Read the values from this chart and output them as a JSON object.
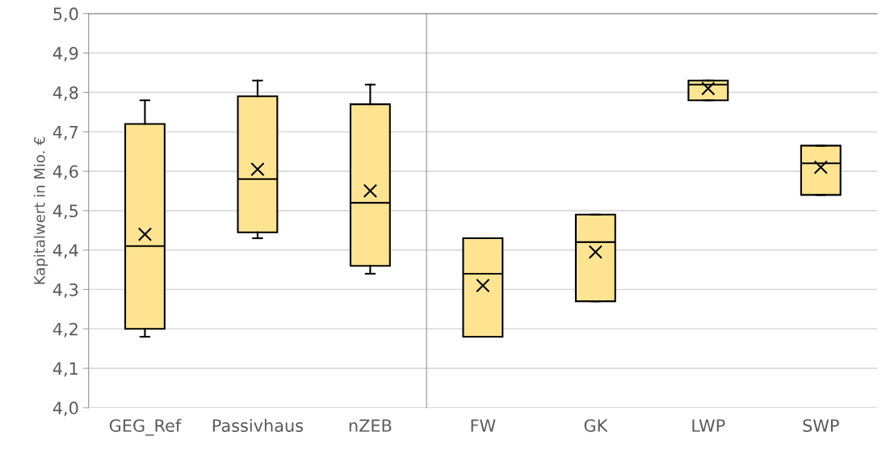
{
  "chart_data": [
    {
      "type": "box",
      "ylabel": "Kapitalwert in Mio. €",
      "categories": [
        "GEG_Ref",
        "Passivhaus",
        "nZEB"
      ],
      "color": "#fee491",
      "boxes": [
        {
          "low": 4.18,
          "q1": 4.2,
          "median": 4.41,
          "q3": 4.72,
          "high": 4.78,
          "mean": 4.44
        },
        {
          "low": 4.43,
          "q1": 4.445,
          "median": 4.58,
          "q3": 4.79,
          "high": 4.83,
          "mean": 4.605
        },
        {
          "low": 4.34,
          "q1": 4.36,
          "median": 4.52,
          "q3": 4.77,
          "high": 4.82,
          "mean": 4.55
        }
      ],
      "ylim": [
        4.0,
        5.0
      ],
      "yticks": [
        {
          "value": 4.0,
          "label": "4,0"
        },
        {
          "value": 4.1,
          "label": "4,1"
        },
        {
          "value": 4.2,
          "label": "4,2"
        },
        {
          "value": 4.3,
          "label": "4,3"
        },
        {
          "value": 4.4,
          "label": "4,4"
        },
        {
          "value": 4.5,
          "label": "4,5"
        },
        {
          "value": 4.6,
          "label": "4,6"
        },
        {
          "value": 4.7,
          "label": "4,7"
        },
        {
          "value": 4.8,
          "label": "4,8"
        },
        {
          "value": 4.9,
          "label": "4,9"
        },
        {
          "value": 5.0,
          "label": "5,0"
        }
      ],
      "grid": "y"
    },
    {
      "type": "box",
      "categories": [
        "FW",
        "GK",
        "LWP",
        "SWP"
      ],
      "color": "#fee491",
      "boxes": [
        {
          "low": 4.18,
          "q1": 4.18,
          "median": 4.34,
          "q3": 4.43,
          "high": 4.43,
          "mean": 4.31
        },
        {
          "low": 4.27,
          "q1": 4.27,
          "median": 4.42,
          "q3": 4.49,
          "high": 4.49,
          "mean": 4.395
        },
        {
          "low": 4.78,
          "q1": 4.78,
          "median": 4.82,
          "q3": 4.83,
          "high": 4.83,
          "mean": 4.81
        },
        {
          "low": 4.54,
          "q1": 4.54,
          "median": 4.62,
          "q3": 4.665,
          "high": 4.665,
          "mean": 4.61
        }
      ],
      "ylim": [
        4.0,
        5.0
      ],
      "yticks": [
        {
          "value": 4.0,
          "label": null
        },
        {
          "value": 4.1,
          "label": null
        },
        {
          "value": 4.2,
          "label": null
        },
        {
          "value": 4.3,
          "label": null
        },
        {
          "value": 4.4,
          "label": null
        },
        {
          "value": 4.5,
          "label": null
        },
        {
          "value": 4.6,
          "label": null
        },
        {
          "value": 4.7,
          "label": null
        },
        {
          "value": 4.8,
          "label": null
        },
        {
          "value": 4.9,
          "label": null
        },
        {
          "value": 5.0,
          "label": null
        }
      ],
      "tick_labels": "x",
      "grid": "y"
    }
  ]
}
